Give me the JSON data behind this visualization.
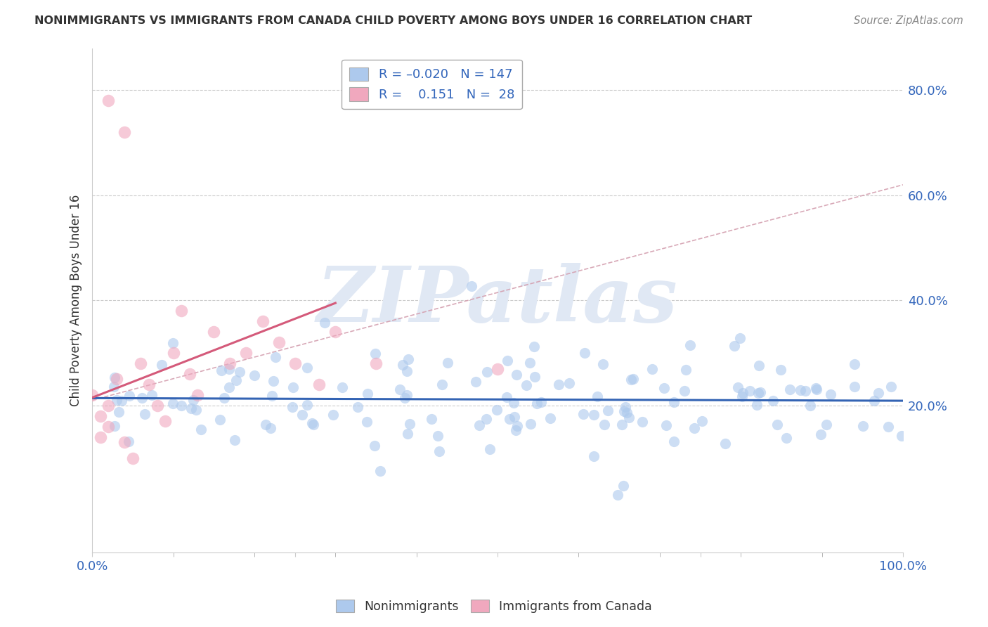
{
  "title": "NONIMMIGRANTS VS IMMIGRANTS FROM CANADA CHILD POVERTY AMONG BOYS UNDER 16 CORRELATION CHART",
  "source": "Source: ZipAtlas.com",
  "ylabel": "Child Poverty Among Boys Under 16",
  "xlim": [
    0.0,
    1.0
  ],
  "ylim": [
    -0.08,
    0.88
  ],
  "ytick_vals": [
    0.2,
    0.4,
    0.6,
    0.8
  ],
  "ytick_labels": [
    "20.0%",
    "40.0%",
    "60.0%",
    "80.0%"
  ],
  "legend_R_blue": "-0.020",
  "legend_N_blue": "147",
  "legend_R_pink": "0.151",
  "legend_N_pink": "28",
  "blue_color": "#adc9ed",
  "pink_color": "#f0a8be",
  "blue_line_color": "#3464b4",
  "pink_line_color": "#d45a7a",
  "dash_line_color": "#d4a0b0",
  "background_color": "#ffffff",
  "watermark_text": "ZIPatlas",
  "watermark_color": "#e0e8f4"
}
